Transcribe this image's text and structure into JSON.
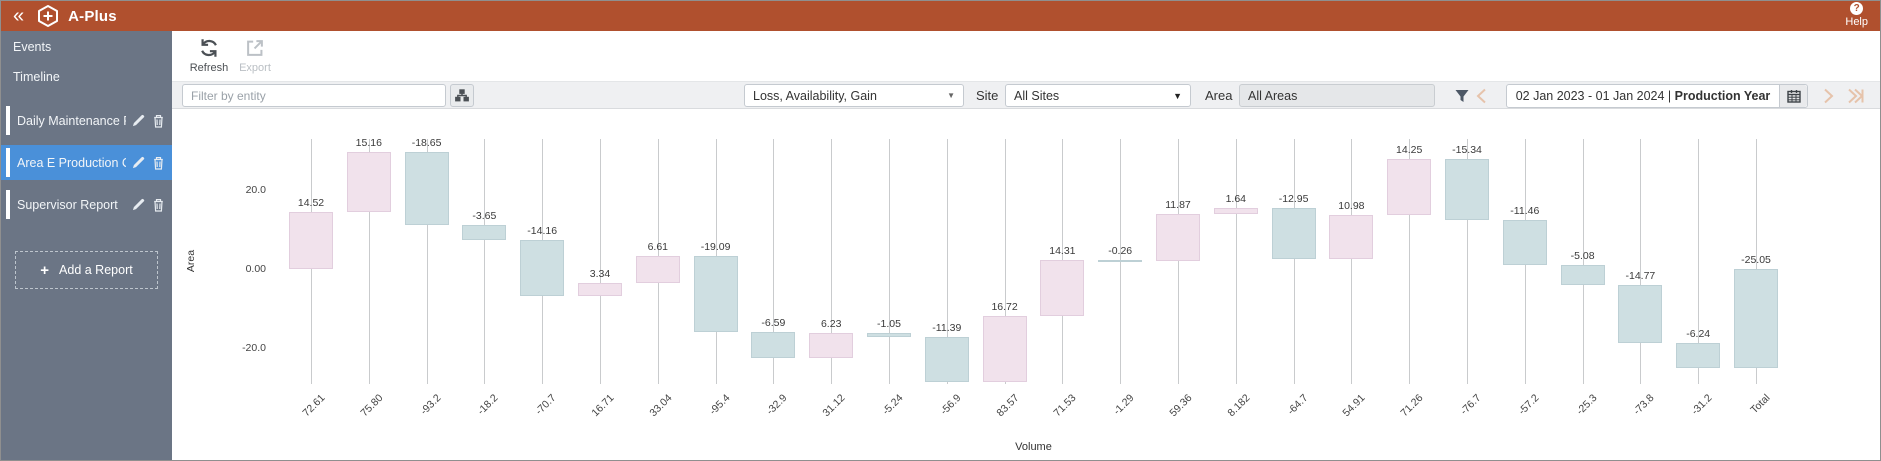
{
  "header": {
    "title": "A-Plus",
    "help_label": "Help"
  },
  "sidebar": {
    "nav_items": [
      {
        "label": "Events"
      },
      {
        "label": "Timeline"
      }
    ],
    "reports": [
      {
        "label": "Daily Maintenance Re...",
        "selected": false
      },
      {
        "label": "Area E Production C...",
        "selected": true
      },
      {
        "label": "Supervisor Report",
        "selected": false
      }
    ],
    "add_report_label": "Add a Report"
  },
  "toolbar": {
    "refresh_label": "Refresh",
    "export_label": "Export"
  },
  "filters": {
    "entity_placeholder": "Filter by entity",
    "metric_dropdown": "Loss, Availability, Gain",
    "site_label": "Site",
    "site_value": "All Sites",
    "area_label": "Area",
    "area_value": "All Areas",
    "date_range_dates": "02 Jan 2023 - 01 Jan 2024",
    "date_range_sep": "|",
    "date_range_mode": "Production Year"
  },
  "chart_data": {
    "type": "bar",
    "subtype": "waterfall",
    "title": "",
    "xlabel": "Volume",
    "ylabel": "Area",
    "categories": [
      "72.61",
      "75.80",
      "-93.2",
      "-18.2",
      "-70.7",
      "16.71",
      "33.04",
      "-95.4",
      "-32.9",
      "31.12",
      "-5.24",
      "-56.9",
      "83.57",
      "71.53",
      "-1.29",
      "59.36",
      "8.182",
      "-64.7",
      "54.91",
      "71.26",
      "-76.7",
      "-57.2",
      "-25.3",
      "-73.8",
      "-31.2",
      "Total"
    ],
    "deltas": [
      14.52,
      15.16,
      -18.65,
      -3.65,
      -14.16,
      3.34,
      6.61,
      -19.09,
      -6.59,
      6.23,
      -1.05,
      -11.39,
      16.72,
      14.31,
      -0.26,
      11.87,
      1.64,
      -12.95,
      10.98,
      14.25,
      -15.34,
      -11.46,
      -5.08,
      -14.77,
      -6.24
    ],
    "total": -25.05,
    "yticks": [
      20.0,
      0.0,
      -20.0
    ],
    "ytick_labels": [
      "20.0",
      "0.00",
      "-20.0"
    ],
    "ylim": [
      -29,
      33
    ],
    "grid": "vertical-only",
    "legend": "none"
  },
  "colors": {
    "brand": "#b0502e",
    "selection": "#4a90d9",
    "positive_bar": "#f1e2ec",
    "negative_bar": "#cedfe2",
    "sidebar_bg": "#6b7585"
  }
}
